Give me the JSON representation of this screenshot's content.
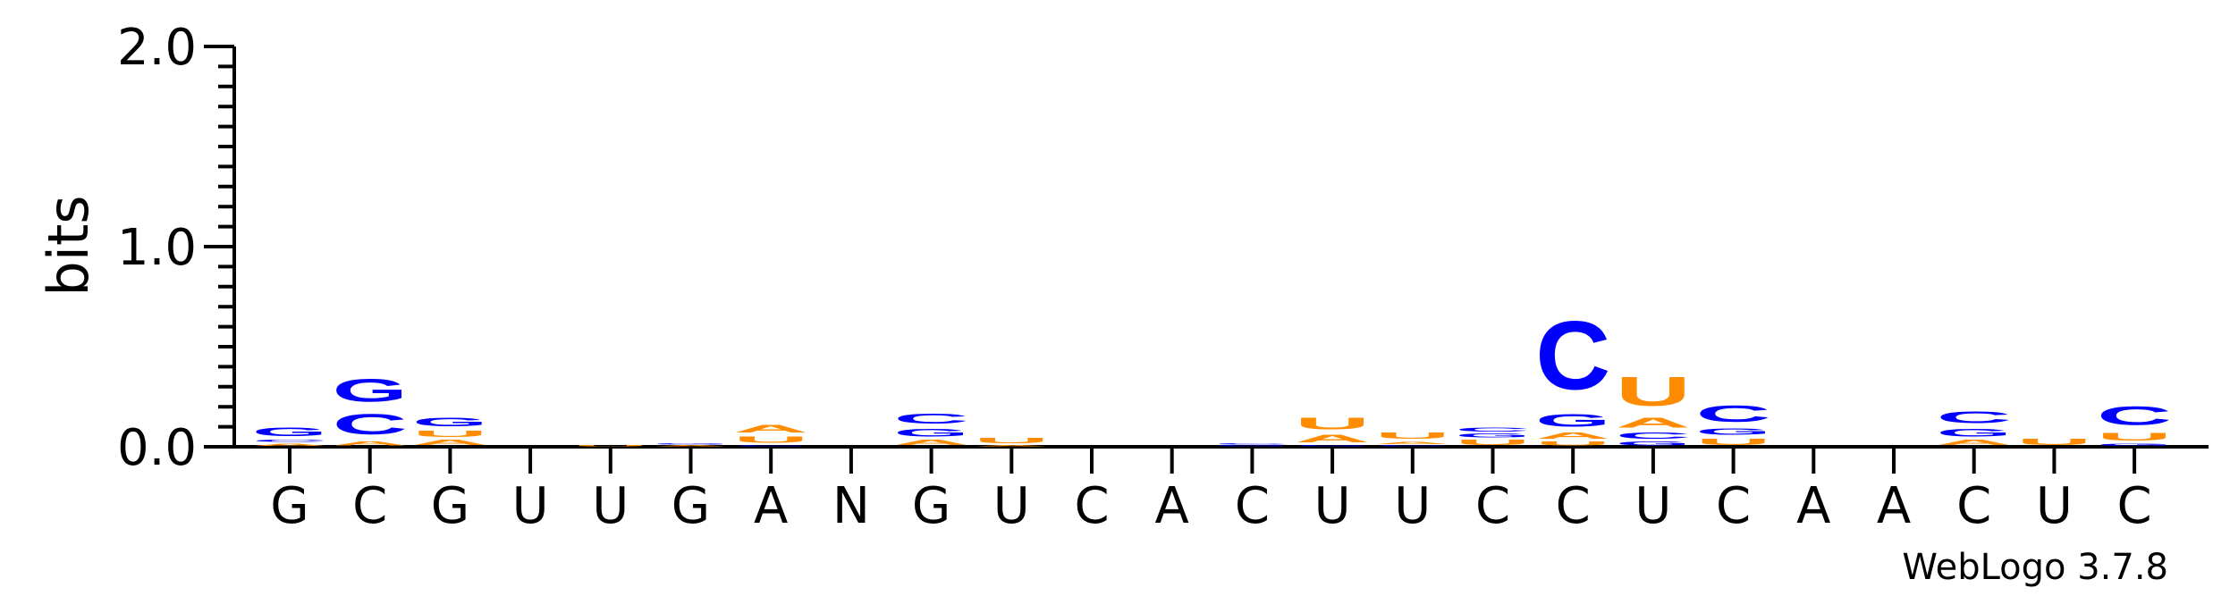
{
  "chart_data": {
    "type": "sequence-logo",
    "ylabel": "bits",
    "ylim": [
      0,
      2.0
    ],
    "yticks": [
      "0.0",
      "1.0",
      "2.0"
    ],
    "ytick_values": [
      0,
      1,
      2
    ],
    "minor_tick_step": 0.1,
    "positions": [
      "G",
      "C",
      "G",
      "U",
      "U",
      "G",
      "A",
      "N",
      "G",
      "U",
      "C",
      "A",
      "C",
      "U",
      "U",
      "C",
      "C",
      "U",
      "C",
      "A",
      "A",
      "C",
      "U",
      "C"
    ],
    "colors": {
      "A": "#FF8C00",
      "U": "#FF8C00",
      "C": "#0000FF",
      "G": "#0000FF"
    },
    "stacks": [
      [
        {
          "base": "A",
          "bits": 0.02
        },
        {
          "base": "C",
          "bits": 0.02
        },
        {
          "base": "G",
          "bits": 0.07
        }
      ],
      [
        {
          "base": "A",
          "bits": 0.03
        },
        {
          "base": "C",
          "bits": 0.16
        },
        {
          "base": "G",
          "bits": 0.18
        }
      ],
      [
        {
          "base": "A",
          "bits": 0.04
        },
        {
          "base": "U",
          "bits": 0.05
        },
        {
          "base": "G",
          "bits": 0.07
        }
      ],
      [],
      [
        {
          "base": "U",
          "bits": 0.01
        }
      ],
      [
        {
          "base": "A",
          "bits": 0.01
        },
        {
          "base": "G",
          "bits": 0.01
        }
      ],
      [
        {
          "base": "C",
          "bits": 0.01
        },
        {
          "base": "U",
          "bits": 0.05
        },
        {
          "base": "A",
          "bits": 0.06
        }
      ],
      [],
      [
        {
          "base": "A",
          "bits": 0.04
        },
        {
          "base": "G",
          "bits": 0.06
        },
        {
          "base": "C",
          "bits": 0.08
        }
      ],
      [
        {
          "base": "A",
          "bits": 0.01
        },
        {
          "base": "U",
          "bits": 0.04
        }
      ],
      [],
      [],
      [
        {
          "base": "G",
          "bits": 0.01
        },
        {
          "base": "C",
          "bits": 0.01
        }
      ],
      [
        {
          "base": "G",
          "bits": 0.01
        },
        {
          "base": "A",
          "bits": 0.06
        },
        {
          "base": "U",
          "bits": 0.09
        }
      ],
      [
        {
          "base": "C",
          "bits": 0.01
        },
        {
          "base": "A",
          "bits": 0.02
        },
        {
          "base": "U",
          "bits": 0.05
        }
      ],
      [
        {
          "base": "U",
          "bits": 0.04
        },
        {
          "base": "G",
          "bits": 0.03
        },
        {
          "base": "C",
          "bits": 0.03
        }
      ],
      [
        {
          "base": "U",
          "bits": 0.03
        },
        {
          "base": "A",
          "bits": 0.05
        },
        {
          "base": "G",
          "bits": 0.1
        },
        {
          "base": "C",
          "bits": 0.55
        }
      ],
      [
        {
          "base": "G",
          "bits": 0.03
        },
        {
          "base": "C",
          "bits": 0.05
        },
        {
          "base": "A",
          "bits": 0.08
        },
        {
          "base": "U",
          "bits": 0.23
        }
      ],
      [
        {
          "base": "U",
          "bits": 0.05
        },
        {
          "base": "G",
          "bits": 0.05
        },
        {
          "base": "C",
          "bits": 0.13
        }
      ],
      [],
      [],
      [
        {
          "base": "A",
          "bits": 0.04
        },
        {
          "base": "G",
          "bits": 0.06
        },
        {
          "base": "C",
          "bits": 0.09
        }
      ],
      [
        {
          "base": "U",
          "bits": 0.05
        }
      ],
      [
        {
          "base": "G",
          "bits": 0.02
        },
        {
          "base": "U",
          "bits": 0.06
        },
        {
          "base": "C",
          "bits": 0.15
        }
      ]
    ]
  },
  "footer": {
    "credit": "WebLogo 3.7.8"
  }
}
